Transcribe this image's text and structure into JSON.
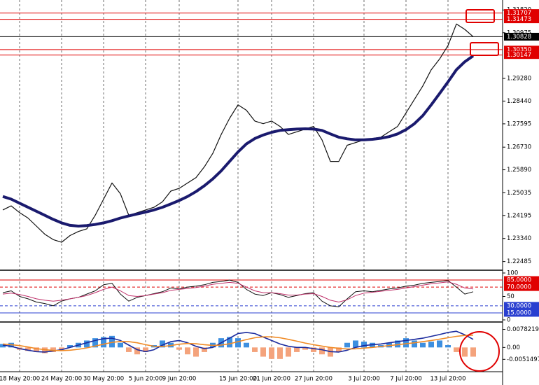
{
  "chart_data": [
    {
      "type": "line",
      "ylim": [
        1.2219,
        1.3219
      ],
      "yticks": [
        {
          "value": 1.3182,
          "label": "1.31820"
        },
        {
          "value": 1.30975,
          "label": "1.30975"
        },
        {
          "value": 1.2928,
          "label": "1.29280"
        },
        {
          "value": 1.2844,
          "label": "1.28440"
        },
        {
          "value": 1.27595,
          "label": "1.27595"
        },
        {
          "value": 1.2673,
          "label": "1.26730"
        },
        {
          "value": 1.2589,
          "label": "1.25890"
        },
        {
          "value": 1.25035,
          "label": "1.25035"
        },
        {
          "value": 1.24195,
          "label": "1.24195"
        },
        {
          "value": 1.2334,
          "label": "1.23340"
        },
        {
          "value": 1.22485,
          "label": "1.22485"
        }
      ],
      "levels": {
        "values": [
          1.31707,
          1.31473,
          1.30828,
          1.3035,
          1.30147
        ],
        "value_labels": [
          "1.31707",
          "1.31473",
          "1.30828",
          "1.30350",
          "1.30147"
        ],
        "colors": [
          "#e00000",
          "#e00000",
          "#000000",
          "#e00000",
          "#e00000"
        ]
      },
      "series": [
        {
          "color": "#111111",
          "width": 1.2,
          "values": [
            1.244,
            1.2455,
            1.243,
            1.241,
            1.238,
            1.235,
            1.233,
            1.232,
            1.2345,
            1.236,
            1.237,
            1.242,
            1.248,
            1.254,
            1.25,
            1.242,
            1.243,
            1.244,
            1.245,
            1.247,
            1.251,
            1.252,
            1.254,
            1.256,
            1.26,
            1.265,
            1.272,
            1.278,
            1.283,
            1.281,
            1.277,
            1.276,
            1.277,
            1.275,
            1.272,
            1.273,
            1.274,
            1.275,
            1.27,
            1.262,
            1.262,
            1.268,
            1.269,
            1.27,
            1.2705,
            1.271,
            1.273,
            1.275,
            1.28,
            1.285,
            1.29,
            1.296,
            1.3,
            1.305,
            1.313,
            1.311,
            1.3083
          ]
        },
        {
          "color": "#1a1a6e",
          "width": 4,
          "values": [
            1.249,
            1.248,
            1.2465,
            1.245,
            1.2435,
            1.242,
            1.2405,
            1.2392,
            1.2383,
            1.238,
            1.2382,
            1.2386,
            1.2392,
            1.24,
            1.241,
            1.2418,
            1.2425,
            1.2432,
            1.244,
            1.245,
            1.2462,
            1.2475,
            1.249,
            1.2508,
            1.253,
            1.2555,
            1.2585,
            1.262,
            1.2655,
            1.2685,
            1.2705,
            1.2718,
            1.2728,
            1.2735,
            1.2738,
            1.274,
            1.2741,
            1.274,
            1.2735,
            1.2722,
            1.271,
            1.2704,
            1.27,
            1.27,
            1.2702,
            1.2706,
            1.2712,
            1.2722,
            1.2738,
            1.276,
            1.279,
            1.283,
            1.2872,
            1.2915,
            1.296,
            1.299,
            1.3012
          ]
        }
      ]
    },
    {
      "type": "line",
      "ylim": [
        0,
        100
      ],
      "yticks": [
        0,
        50,
        100
      ],
      "levels": {
        "values": [
          85,
          70,
          30,
          15
        ],
        "value_labels": [
          "85.0000",
          "70.0000",
          "30.0000",
          "15.0000"
        ],
        "colors": [
          "#e00000",
          "#e00000",
          "#2a3fd0",
          "#2a3fd0"
        ]
      },
      "series": [
        {
          "color": "#111111",
          "width": 1,
          "values": [
            58,
            62,
            50,
            45,
            38,
            35,
            30,
            40,
            45,
            48,
            55,
            62,
            75,
            78,
            55,
            40,
            48,
            52,
            56,
            60,
            68,
            66,
            70,
            72,
            75,
            80,
            82,
            85,
            80,
            65,
            55,
            52,
            58,
            54,
            48,
            52,
            56,
            58,
            40,
            30,
            28,
            45,
            60,
            62,
            60,
            63,
            66,
            68,
            72,
            74,
            78,
            80,
            82,
            84,
            70,
            55,
            60
          ]
        },
        {
          "color": "#c0306a",
          "width": 1,
          "values": [
            55,
            57,
            54,
            50,
            45,
            42,
            40,
            42,
            45,
            48,
            52,
            58,
            65,
            70,
            62,
            52,
            50,
            52,
            55,
            58,
            63,
            65,
            67,
            69,
            72,
            76,
            78,
            80,
            78,
            70,
            62,
            58,
            58,
            56,
            53,
            53,
            55,
            56,
            50,
            42,
            38,
            43,
            52,
            57,
            59,
            61,
            63,
            65,
            68,
            71,
            74,
            77,
            79,
            81,
            76,
            68,
            66
          ]
        }
      ]
    },
    {
      "type": "bar",
      "ylim": [
        -0.0096,
        0.0098
      ],
      "yticks": [
        {
          "value": 0.0078219,
          "label": "0.0078219"
        },
        {
          "value": 0,
          "label": "0.00"
        },
        {
          "value": -0.0051497,
          "label": "-0.0051497"
        }
      ],
      "positive_color": "#3d8fe0",
      "negative_color": "#f4a37c",
      "categories": [
        null,
        null,
        "18 May 20:00",
        null,
        null,
        null,
        null,
        "24 May 20:00",
        null,
        null,
        null,
        null,
        "30 May 20:00",
        null,
        null,
        null,
        null,
        "5 Jun 20:00",
        null,
        null,
        null,
        "9 Jun 20:00",
        null,
        null,
        null,
        null,
        null,
        null,
        "15 Jun 20:00",
        null,
        null,
        null,
        "21 Jun 20:00",
        null,
        null,
        null,
        null,
        "27 Jun 20:00",
        null,
        null,
        null,
        null,
        null,
        "3 Jul 20:00",
        null,
        null,
        null,
        null,
        "7 Jul 20:00",
        null,
        null,
        null,
        null,
        "13 Jul 20:00",
        null,
        null,
        null
      ],
      "values": [
        0.0015,
        0.002,
        -0.001,
        -0.0015,
        -0.002,
        -0.0025,
        -0.002,
        -0.001,
        0.001,
        0.002,
        0.003,
        0.004,
        0.0045,
        0.005,
        0.002,
        -0.002,
        -0.003,
        -0.002,
        0.001,
        0.003,
        0.002,
        -0.001,
        -0.003,
        -0.004,
        -0.002,
        0.002,
        0.004,
        0.0045,
        0.004,
        0.002,
        -0.002,
        -0.004,
        -0.005,
        -0.005,
        -0.004,
        -0.002,
        -0.001,
        -0.002,
        -0.003,
        -0.004,
        -0.002,
        0.002,
        0.003,
        0.0025,
        0.002,
        0.001,
        0.002,
        0.003,
        0.004,
        0.003,
        0.002,
        0.0025,
        0.003,
        0.001,
        -0.002,
        -0.004,
        -0.004
      ],
      "series": [
        {
          "color": "#1a2a9e",
          "width": 1.6,
          "values": [
            0.001,
            0.0005,
            -0.0005,
            -0.0012,
            -0.0018,
            -0.002,
            -0.0015,
            -0.001,
            0,
            0.001,
            0.002,
            0.003,
            0.0038,
            0.004,
            0.003,
            0.001,
            -0.001,
            -0.0018,
            -0.001,
            0.001,
            0.0025,
            0.003,
            0.002,
            0.0005,
            -0.0005,
            0,
            0.002,
            0.004,
            0.006,
            0.0065,
            0.006,
            0.0045,
            0.003,
            0.0015,
            0.0005,
            0,
            0,
            -0.0005,
            -0.001,
            -0.0018,
            -0.002,
            -0.0012,
            0,
            0.0008,
            0.0012,
            0.0015,
            0.002,
            0.0025,
            0.003,
            0.0035,
            0.004,
            0.0048,
            0.0056,
            0.0065,
            0.007,
            0.0055,
            0.0035
          ]
        },
        {
          "color": "#f08a24",
          "width": 1.6,
          "values": [
            0.0015,
            0.0012,
            0.0008,
            0.0002,
            -0.0005,
            -0.001,
            -0.0013,
            -0.0014,
            -0.0012,
            -0.0008,
            -0.0002,
            0.0006,
            0.0014,
            0.0022,
            0.0026,
            0.0025,
            0.002,
            0.0012,
            0.0005,
            0.0004,
            0.0008,
            0.0014,
            0.0017,
            0.0016,
            0.0012,
            0.0009,
            0.001,
            0.0016,
            0.0025,
            0.0034,
            0.0042,
            0.0046,
            0.0046,
            0.0042,
            0.0035,
            0.0027,
            0.0019,
            0.0012,
            0.0006,
            0,
            -0.0004,
            -0.0007,
            -0.0006,
            -0.0003,
            0,
            0.0004,
            0.0008,
            0.0012,
            0.0016,
            0.002,
            0.0025,
            0.003,
            0.0036,
            0.0042,
            0.0048,
            0.0052,
            0.0053
          ]
        }
      ]
    }
  ]
}
